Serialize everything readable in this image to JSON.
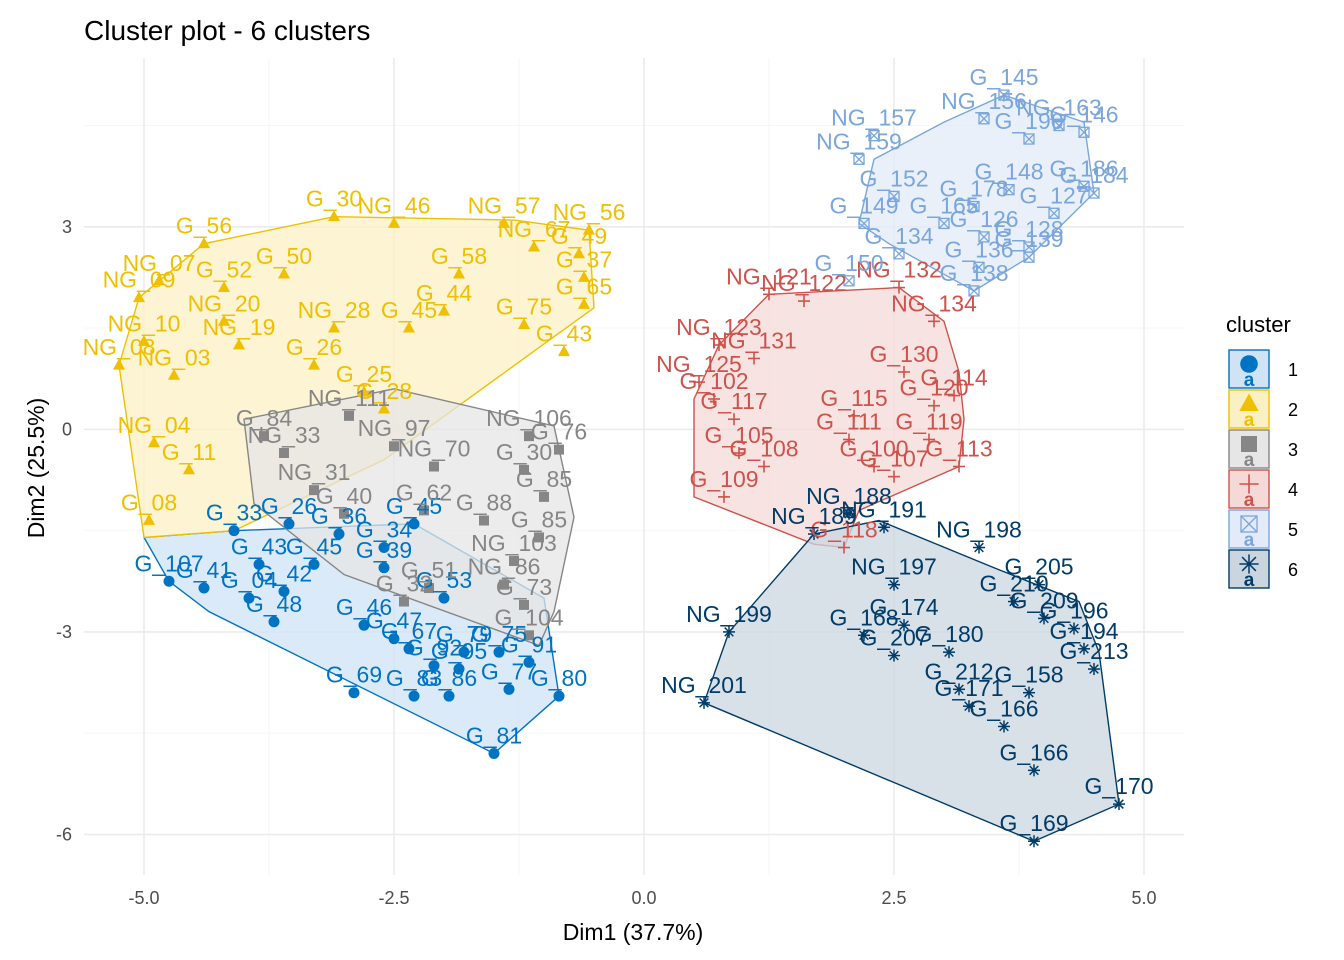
{
  "chart_data": {
    "type": "scatter",
    "title": "Cluster plot - 6 clusters",
    "xlabel": "Dim1 (37.7%)",
    "ylabel": "Dim2 (25.5%)",
    "xlim": [
      -5.6,
      5.4
    ],
    "ylim": [
      -6.6,
      5.5
    ],
    "x_ticks": [
      -5.0,
      -2.5,
      0.0,
      2.5,
      5.0
    ],
    "x_tick_labels": [
      "-5.0",
      "-2.5",
      "0.0",
      "2.5",
      "5.0"
    ],
    "y_ticks": [
      -6,
      -3,
      0,
      3
    ],
    "y_tick_labels": [
      "-6",
      "-3",
      "0",
      "3"
    ],
    "legend": {
      "title": "cluster",
      "position": "right",
      "key_text": "a",
      "entries": [
        "1",
        "2",
        "3",
        "4",
        "5",
        "6"
      ]
    },
    "series": [
      {
        "name": "1",
        "color": "#0073c2",
        "fill": "#cfe3f5",
        "shape": "circle",
        "hull": [
          [
            -5.0,
            -1.6
          ],
          [
            -4.1,
            -1.5
          ],
          [
            -2.3,
            -1.4
          ],
          [
            -1.0,
            -2.5
          ],
          [
            -0.85,
            -3.95
          ],
          [
            -1.5,
            -4.8
          ],
          [
            -4.35,
            -2.7
          ],
          [
            -4.75,
            -2.25
          ]
        ],
        "points": [
          {
            "x": -4.75,
            "y": -2.25,
            "label": "G_107"
          },
          {
            "x": -4.4,
            "y": -2.35,
            "label": "G_41"
          },
          {
            "x": -3.6,
            "y": -2.4,
            "label": "G_42"
          },
          {
            "x": -3.85,
            "y": -2.0,
            "label": "G_43"
          },
          {
            "x": -3.95,
            "y": -2.5,
            "label": "G_04"
          },
          {
            "x": -3.7,
            "y": -2.85,
            "label": "G_48"
          },
          {
            "x": -2.8,
            "y": -2.9,
            "label": "G_46"
          },
          {
            "x": -2.5,
            "y": -3.1,
            "label": "G_47"
          },
          {
            "x": -2.35,
            "y": -3.25,
            "label": "G_67"
          },
          {
            "x": -1.8,
            "y": -3.3,
            "label": "G_79"
          },
          {
            "x": -1.45,
            "y": -3.3,
            "label": "G_75"
          },
          {
            "x": -2.1,
            "y": -3.5,
            "label": "G_92"
          },
          {
            "x": -1.85,
            "y": -3.55,
            "label": "G_95"
          },
          {
            "x": -1.15,
            "y": -3.45,
            "label": "G_91"
          },
          {
            "x": -0.85,
            "y": -3.95,
            "label": "G_80"
          },
          {
            "x": -1.35,
            "y": -3.85,
            "label": "G_77"
          },
          {
            "x": -2.9,
            "y": -3.9,
            "label": "G_69"
          },
          {
            "x": -2.3,
            "y": -3.95,
            "label": "G_83"
          },
          {
            "x": -1.95,
            "y": -3.95,
            "label": "G_86"
          },
          {
            "x": -1.5,
            "y": -4.8,
            "label": "G_81"
          },
          {
            "x": -3.55,
            "y": -1.4,
            "label": "G_26"
          },
          {
            "x": -3.05,
            "y": -1.55,
            "label": "G_36"
          },
          {
            "x": -2.6,
            "y": -1.75,
            "label": "G_34"
          },
          {
            "x": -2.3,
            "y": -1.4,
            "label": "G_45"
          },
          {
            "x": -3.3,
            "y": -2.0,
            "label": "G_45"
          },
          {
            "x": -4.1,
            "y": -1.5,
            "label": "G_33"
          },
          {
            "x": -2.6,
            "y": -2.05,
            "label": "G_39"
          },
          {
            "x": -2.0,
            "y": -2.5,
            "label": "G_53"
          }
        ]
      },
      {
        "name": "2",
        "color": "#efc000",
        "fill": "#fbf0c4",
        "shape": "triangle",
        "hull": [
          [
            -5.05,
            1.95
          ],
          [
            -4.4,
            2.75
          ],
          [
            -3.1,
            3.15
          ],
          [
            -1.3,
            3.1
          ],
          [
            -0.55,
            2.95
          ],
          [
            -0.5,
            1.8
          ],
          [
            -1.2,
            1.05
          ],
          [
            -2.6,
            -0.45
          ],
          [
            -4.1,
            -1.5
          ],
          [
            -5.0,
            -1.6
          ],
          [
            -5.25,
            0.95
          ]
        ],
        "points": [
          {
            "x": -5.05,
            "y": 1.95,
            "label": "NG_09"
          },
          {
            "x": -4.85,
            "y": 2.2,
            "label": "NG_07"
          },
          {
            "x": -5.25,
            "y": 0.95,
            "label": "NG_08"
          },
          {
            "x": -5.0,
            "y": 1.3,
            "label": "NG_10"
          },
          {
            "x": -4.95,
            "y": -1.35,
            "label": "G_08"
          },
          {
            "x": -4.9,
            "y": -0.2,
            "label": "NG_04"
          },
          {
            "x": -4.7,
            "y": 0.8,
            "label": "NG_03"
          },
          {
            "x": -4.4,
            "y": 2.75,
            "label": "G_56"
          },
          {
            "x": -4.2,
            "y": 1.6,
            "label": "NG_20"
          },
          {
            "x": -4.05,
            "y": 1.25,
            "label": "NG_19"
          },
          {
            "x": -3.1,
            "y": 3.15,
            "label": "G_30"
          },
          {
            "x": -2.5,
            "y": 3.05,
            "label": "NG_46"
          },
          {
            "x": -1.4,
            "y": 3.05,
            "label": "NG_57"
          },
          {
            "x": -1.1,
            "y": 2.7,
            "label": "NG_67"
          },
          {
            "x": -0.55,
            "y": 2.95,
            "label": "NG_56"
          },
          {
            "x": -0.65,
            "y": 2.6,
            "label": "G_49"
          },
          {
            "x": -0.6,
            "y": 2.25,
            "label": "G_37"
          },
          {
            "x": -0.6,
            "y": 1.85,
            "label": "G_65"
          },
          {
            "x": -0.8,
            "y": 1.15,
            "label": "G_43"
          },
          {
            "x": -1.2,
            "y": 1.55,
            "label": "G_75"
          },
          {
            "x": -2.35,
            "y": 1.5,
            "label": "G_45"
          },
          {
            "x": -3.1,
            "y": 1.5,
            "label": "NG_28"
          },
          {
            "x": -3.3,
            "y": 0.95,
            "label": "G_26"
          },
          {
            "x": -2.8,
            "y": 0.55,
            "label": "G_25"
          },
          {
            "x": -2.6,
            "y": 0.3,
            "label": "G_28"
          },
          {
            "x": -4.55,
            "y": -0.6,
            "label": "G_11"
          },
          {
            "x": -4.2,
            "y": 2.1,
            "label": "G_52"
          },
          {
            "x": -3.6,
            "y": 2.3,
            "label": "G_50"
          },
          {
            "x": -1.85,
            "y": 2.3,
            "label": "G_58"
          },
          {
            "x": -2.0,
            "y": 1.75,
            "label": "G_44"
          }
        ]
      },
      {
        "name": "3",
        "color": "#868686",
        "fill": "#e6e6e6",
        "shape": "square",
        "hull": [
          [
            -4.0,
            0.15
          ],
          [
            -2.5,
            0.6
          ],
          [
            -0.9,
            0.05
          ],
          [
            -0.7,
            -1.3
          ],
          [
            -0.9,
            -2.7
          ],
          [
            -1.05,
            -3.2
          ],
          [
            -3.0,
            -2.15
          ],
          [
            -3.9,
            -1.1
          ]
        ],
        "points": [
          {
            "x": -3.8,
            "y": -0.1,
            "label": "G_84"
          },
          {
            "x": -3.6,
            "y": -0.35,
            "label": "NG_33"
          },
          {
            "x": -2.95,
            "y": 0.2,
            "label": "NG_111"
          },
          {
            "x": -2.5,
            "y": -0.25,
            "label": "NG_97"
          },
          {
            "x": -2.1,
            "y": -0.55,
            "label": "NG_70"
          },
          {
            "x": -1.15,
            "y": -0.1,
            "label": "NG_106"
          },
          {
            "x": -0.85,
            "y": -0.3,
            "label": "G_76"
          },
          {
            "x": -1.2,
            "y": -0.6,
            "label": "G_30"
          },
          {
            "x": -1.0,
            "y": -1.0,
            "label": "G_85"
          },
          {
            "x": -1.05,
            "y": -1.6,
            "label": "G_85"
          },
          {
            "x": -1.3,
            "y": -1.95,
            "label": "NG_103"
          },
          {
            "x": -1.4,
            "y": -2.3,
            "label": "NG_86"
          },
          {
            "x": -1.2,
            "y": -2.6,
            "label": "G_73"
          },
          {
            "x": -1.15,
            "y": -3.05,
            "label": "G_104"
          },
          {
            "x": -2.15,
            "y": -2.35,
            "label": "G_51"
          },
          {
            "x": -2.4,
            "y": -2.55,
            "label": "G_32"
          },
          {
            "x": -2.2,
            "y": -1.2,
            "label": "G_62"
          },
          {
            "x": -3.3,
            "y": -0.9,
            "label": "NG_31"
          },
          {
            "x": -3.0,
            "y": -1.25,
            "label": "G_40"
          },
          {
            "x": -1.6,
            "y": -1.35,
            "label": "G_88"
          }
        ]
      },
      {
        "name": "4",
        "color": "#cd534c",
        "fill": "#f4d9d7",
        "shape": "plus",
        "hull": [
          [
            1.25,
            2.0
          ],
          [
            2.55,
            2.1
          ],
          [
            3.0,
            1.6
          ],
          [
            3.15,
            0.85
          ],
          [
            3.2,
            0.15
          ],
          [
            3.15,
            -0.55
          ],
          [
            2.15,
            -1.2
          ],
          [
            2.0,
            -1.75
          ],
          [
            1.7,
            -1.7
          ],
          [
            0.5,
            -1.0
          ],
          [
            0.5,
            0.45
          ],
          [
            0.75,
            1.25
          ]
        ],
        "points": [
          {
            "x": 1.25,
            "y": 2.0,
            "label": "NG_121"
          },
          {
            "x": 1.6,
            "y": 1.9,
            "label": "NG_122"
          },
          {
            "x": 2.55,
            "y": 2.1,
            "label": "NG_132"
          },
          {
            "x": 2.9,
            "y": 1.6,
            "label": "NG_134"
          },
          {
            "x": 0.75,
            "y": 1.25,
            "label": "NG_123"
          },
          {
            "x": 1.1,
            "y": 1.05,
            "label": "NG_131"
          },
          {
            "x": 2.6,
            "y": 0.85,
            "label": "G_130"
          },
          {
            "x": 0.55,
            "y": 0.7,
            "label": "NG_125"
          },
          {
            "x": 0.7,
            "y": 0.45,
            "label": "G_102"
          },
          {
            "x": 3.1,
            "y": 0.5,
            "label": "G_114"
          },
          {
            "x": 2.9,
            "y": 0.35,
            "label": "G_120"
          },
          {
            "x": 2.1,
            "y": 0.2,
            "label": "G_115"
          },
          {
            "x": 0.9,
            "y": 0.15,
            "label": "G_117"
          },
          {
            "x": 2.05,
            "y": -0.15,
            "label": "G_111"
          },
          {
            "x": 2.85,
            "y": -0.15,
            "label": "G_119"
          },
          {
            "x": 0.95,
            "y": -0.35,
            "label": "G_105"
          },
          {
            "x": 1.2,
            "y": -0.55,
            "label": "G_108"
          },
          {
            "x": 2.3,
            "y": -0.55,
            "label": "G_100"
          },
          {
            "x": 2.5,
            "y": -0.7,
            "label": "G_107"
          },
          {
            "x": 3.15,
            "y": -0.55,
            "label": "G_113"
          },
          {
            "x": 0.8,
            "y": -1.0,
            "label": "G_109"
          },
          {
            "x": 2.0,
            "y": -1.75,
            "label": "G_118"
          }
        ]
      },
      {
        "name": "5",
        "color": "#7aa6dc",
        "fill": "#e2ebf7",
        "shape": "squarecross",
        "hull": [
          [
            3.6,
            4.95
          ],
          [
            4.4,
            4.55
          ],
          [
            4.5,
            3.5
          ],
          [
            3.85,
            2.55
          ],
          [
            3.3,
            2.05
          ],
          [
            2.45,
            2.75
          ],
          [
            2.15,
            3.05
          ],
          [
            2.3,
            4.0
          ],
          [
            3.0,
            4.55
          ]
        ],
        "points": [
          {
            "x": 3.6,
            "y": 4.95,
            "label": "G_145"
          },
          {
            "x": 3.4,
            "y": 4.6,
            "label": "NG_156"
          },
          {
            "x": 4.15,
            "y": 4.5,
            "label": "NG_163"
          },
          {
            "x": 2.3,
            "y": 4.35,
            "label": "NG_157"
          },
          {
            "x": 4.4,
            "y": 4.4,
            "label": "G_146"
          },
          {
            "x": 2.15,
            "y": 4.0,
            "label": "NG_159"
          },
          {
            "x": 4.4,
            "y": 3.6,
            "label": "G_186"
          },
          {
            "x": 2.5,
            "y": 3.45,
            "label": "G_152"
          },
          {
            "x": 3.3,
            "y": 3.3,
            "label": "G_178"
          },
          {
            "x": 3.65,
            "y": 3.55,
            "label": "G_148"
          },
          {
            "x": 4.1,
            "y": 3.2,
            "label": "G_127"
          },
          {
            "x": 2.2,
            "y": 3.05,
            "label": "G_149"
          },
          {
            "x": 3.0,
            "y": 3.05,
            "label": "G_165"
          },
          {
            "x": 3.4,
            "y": 2.85,
            "label": "G_126"
          },
          {
            "x": 3.85,
            "y": 2.7,
            "label": "G_128"
          },
          {
            "x": 2.55,
            "y": 2.6,
            "label": "G_134"
          },
          {
            "x": 3.35,
            "y": 2.4,
            "label": "G_136"
          },
          {
            "x": 3.85,
            "y": 2.55,
            "label": "G_139"
          },
          {
            "x": 2.05,
            "y": 2.2,
            "label": "G_150"
          },
          {
            "x": 3.3,
            "y": 2.05,
            "label": "G_138"
          },
          {
            "x": 4.5,
            "y": 3.5,
            "label": "G_184"
          },
          {
            "x": 3.85,
            "y": 4.3,
            "label": "G_190"
          }
        ]
      },
      {
        "name": "6",
        "color": "#003c67",
        "fill": "#cbd5e0",
        "shape": "star",
        "hull": [
          [
            1.7,
            -1.55
          ],
          [
            2.35,
            -1.35
          ],
          [
            3.5,
            -2.05
          ],
          [
            4.35,
            -2.55
          ],
          [
            4.55,
            -3.3
          ],
          [
            4.75,
            -5.55
          ],
          [
            3.9,
            -6.1
          ],
          [
            0.6,
            -4.05
          ],
          [
            0.85,
            -3.0
          ]
        ],
        "points": [
          {
            "x": 0.85,
            "y": -3.0,
            "label": "NG_199"
          },
          {
            "x": 0.6,
            "y": -4.05,
            "label": "NG_201"
          },
          {
            "x": 1.7,
            "y": -1.55,
            "label": "NG_189"
          },
          {
            "x": 2.05,
            "y": -1.25,
            "label": "NG_188"
          },
          {
            "x": 2.4,
            "y": -1.45,
            "label": "NG_191"
          },
          {
            "x": 2.5,
            "y": -2.3,
            "label": "NG_197"
          },
          {
            "x": 3.35,
            "y": -1.75,
            "label": "NG_198"
          },
          {
            "x": 3.95,
            "y": -2.3,
            "label": "G_205"
          },
          {
            "x": 3.7,
            "y": -2.55,
            "label": "G_210"
          },
          {
            "x": 4.0,
            "y": -2.8,
            "label": "G_209"
          },
          {
            "x": 4.3,
            "y": -2.95,
            "label": "G_196"
          },
          {
            "x": 2.2,
            "y": -3.05,
            "label": "G_168"
          },
          {
            "x": 2.6,
            "y": -2.9,
            "label": "G_174"
          },
          {
            "x": 2.5,
            "y": -3.35,
            "label": "G_207"
          },
          {
            "x": 4.4,
            "y": -3.25,
            "label": "G_194"
          },
          {
            "x": 4.5,
            "y": -3.55,
            "label": "G_213"
          },
          {
            "x": 3.15,
            "y": -3.85,
            "label": "G_212"
          },
          {
            "x": 3.85,
            "y": -3.9,
            "label": "G_158"
          },
          {
            "x": 3.25,
            "y": -4.1,
            "label": "G_171"
          },
          {
            "x": 3.6,
            "y": -4.4,
            "label": "G_166"
          },
          {
            "x": 3.9,
            "y": -5.05,
            "label": "G_166"
          },
          {
            "x": 4.75,
            "y": -5.55,
            "label": "G_170"
          },
          {
            "x": 3.9,
            "y": -6.1,
            "label": "G_169"
          },
          {
            "x": 3.05,
            "y": -3.3,
            "label": "G_180"
          }
        ]
      }
    ]
  }
}
